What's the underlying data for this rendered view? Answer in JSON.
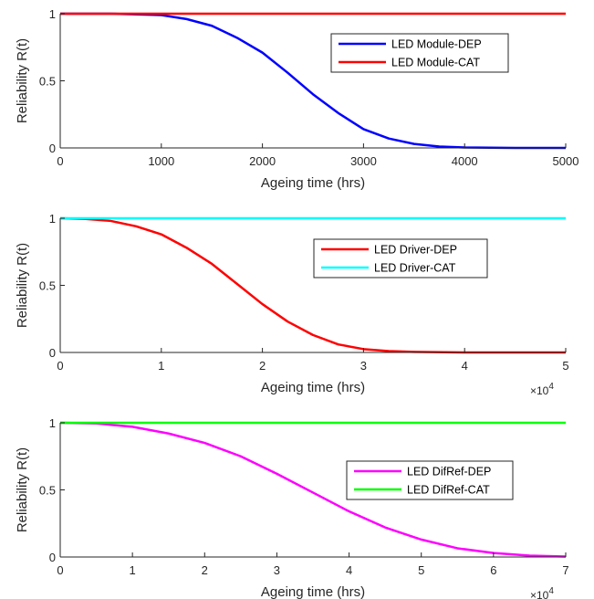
{
  "chart_data": [
    {
      "type": "line",
      "xlabel": "Ageing time (hrs)",
      "ylabel": "Reliability R(t)",
      "xlim": [
        0,
        5000
      ],
      "ylim": [
        0,
        1
      ],
      "x_ticks": [
        0,
        1000,
        2000,
        3000,
        4000,
        5000
      ],
      "x_tick_labels": [
        "0",
        "1000",
        "2000",
        "3000",
        "4000",
        "5000"
      ],
      "y_ticks": [
        0,
        0.5,
        1
      ],
      "y_tick_labels": [
        "0",
        "0.5",
        "1"
      ],
      "x_multiplier": "",
      "legend_position": "upper-right",
      "series": [
        {
          "name": "LED Module-DEP",
          "color": "#0000ff",
          "x": [
            0,
            500,
            1000,
            1250,
            1500,
            1750,
            2000,
            2250,
            2500,
            2750,
            3000,
            3250,
            3500,
            3750,
            4000,
            4500,
            5000
          ],
          "y": [
            1.0,
            1.0,
            0.99,
            0.96,
            0.91,
            0.82,
            0.71,
            0.56,
            0.4,
            0.26,
            0.14,
            0.07,
            0.03,
            0.01,
            0.003,
            0.0,
            0.0
          ]
        },
        {
          "name": "LED Module-CAT",
          "color": "#ff0000",
          "x": [
            0,
            5000
          ],
          "y": [
            1.0,
            1.0
          ]
        }
      ]
    },
    {
      "type": "line",
      "xlabel": "Ageing time (hrs)",
      "ylabel": "Reliability R(t)",
      "xlim": [
        0,
        5
      ],
      "ylim": [
        0,
        1
      ],
      "x_ticks": [
        0,
        1,
        2,
        3,
        4,
        5
      ],
      "x_tick_labels": [
        "0",
        "1",
        "2",
        "3",
        "4",
        "5"
      ],
      "y_ticks": [
        0,
        0.5,
        1
      ],
      "y_tick_labels": [
        "0",
        "0.5",
        "1"
      ],
      "x_multiplier": "×10",
      "x_multiplier_exp": "4",
      "legend_position": "right",
      "series": [
        {
          "name": "LED Driver-DEP",
          "color": "#ff0000",
          "x": [
            0,
            0.25,
            0.5,
            0.75,
            1.0,
            1.25,
            1.5,
            1.75,
            2.0,
            2.25,
            2.5,
            2.75,
            3.0,
            3.25,
            3.5,
            4.0,
            4.5,
            5.0
          ],
          "y": [
            1.0,
            0.995,
            0.98,
            0.94,
            0.88,
            0.78,
            0.66,
            0.51,
            0.36,
            0.23,
            0.13,
            0.06,
            0.025,
            0.01,
            0.004,
            0.0,
            0.0,
            0.0
          ]
        },
        {
          "name": "LED Driver-CAT",
          "color": "#00ffff",
          "x": [
            0,
            5
          ],
          "y": [
            1.0,
            1.0
          ]
        }
      ]
    },
    {
      "type": "line",
      "xlabel": "Ageing time (hrs)",
      "ylabel": "Reliability R(t)",
      "xlim": [
        0,
        7
      ],
      "ylim": [
        0,
        1
      ],
      "x_ticks": [
        0,
        1,
        2,
        3,
        4,
        5,
        6,
        7
      ],
      "x_tick_labels": [
        "0",
        "1",
        "2",
        "3",
        "4",
        "5",
        "6",
        "7"
      ],
      "y_ticks": [
        0,
        0.5,
        1
      ],
      "y_tick_labels": [
        "0",
        "0.5",
        "1"
      ],
      "x_multiplier": "×10",
      "x_multiplier_exp": "4",
      "legend_position": "right",
      "series": [
        {
          "name": "LED DifRef-DEP",
          "color": "#ff00ff",
          "x": [
            0,
            0.5,
            1.0,
            1.5,
            2.0,
            2.5,
            3.0,
            3.5,
            4.0,
            4.5,
            5.0,
            5.5,
            6.0,
            6.5,
            7.0
          ],
          "y": [
            1.0,
            0.995,
            0.97,
            0.92,
            0.85,
            0.75,
            0.62,
            0.48,
            0.34,
            0.22,
            0.13,
            0.065,
            0.03,
            0.01,
            0.003
          ]
        },
        {
          "name": "LED DifRef-CAT",
          "color": "#00ff00",
          "x": [
            0,
            7
          ],
          "y": [
            1.0,
            1.0
          ]
        }
      ]
    }
  ]
}
